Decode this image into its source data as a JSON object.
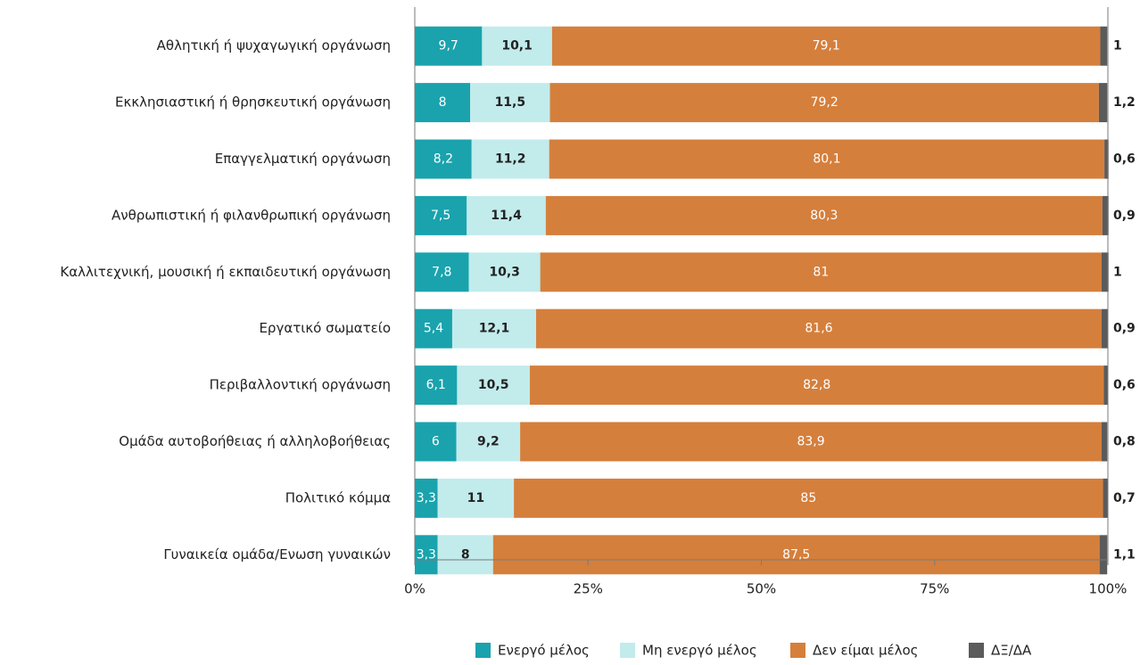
{
  "chart_data": {
    "type": "bar",
    "orientation": "horizontal",
    "stacked": true,
    "categories": [
      "Αθλητική ή ψυχαγωγική οργάνωση",
      "Εκκλησιαστική ή θρησκευτική οργάνωση",
      "Επαγγελματική οργάνωση",
      "Ανθρωπιστική ή φιλανθρωπική οργάνωση",
      "Καλλιτεχνική, μουσική ή εκπαιδευτική οργάνωση",
      "Εργατικό σωματείο",
      "Περιβαλλοντική οργάνωση",
      "Ομάδα αυτοβοήθειας ή αλληλοβοήθειας",
      "Πολιτικό κόμμα",
      "Γυναικεία ομάδα/Ενωση γυναικών"
    ],
    "series": [
      {
        "name": "Ενεργό μέλος",
        "color": "#1aa3ad",
        "label_color": "#ffffff",
        "values": [
          9.7,
          8,
          8.2,
          7.5,
          7.8,
          5.4,
          6.1,
          6,
          3.3,
          3.3
        ],
        "labels": [
          "9,7",
          "8",
          "8,2",
          "7,5",
          "7,8",
          "5,4",
          "6,1",
          "6",
          "3,3",
          "3,3"
        ]
      },
      {
        "name": "Μη ενεργό μέλος",
        "color": "#c2ebec",
        "label_color": "#222222",
        "values": [
          10.1,
          11.5,
          11.2,
          11.4,
          10.3,
          12.1,
          10.5,
          9.2,
          11,
          8
        ],
        "labels": [
          "10,1",
          "11,5",
          "11,2",
          "11,4",
          "10,3",
          "12,1",
          "10,5",
          "9,2",
          "11",
          "8"
        ]
      },
      {
        "name": "Δεν είμαι μέλος",
        "color": "#d57f3c",
        "label_color": "#ffffff",
        "values": [
          79.1,
          79.2,
          80.1,
          80.3,
          81,
          81.6,
          82.8,
          83.9,
          85,
          87.5
        ],
        "labels": [
          "79,1",
          "79,2",
          "80,1",
          "80,3",
          "81",
          "81,6",
          "82,8",
          "83,9",
          "85",
          "87,5"
        ]
      },
      {
        "name": "ΔΞ/ΔΑ",
        "color": "#5b5b5b",
        "label_color": "#222222",
        "label_outside": true,
        "values": [
          1,
          1.2,
          0.6,
          0.9,
          1,
          0.9,
          0.6,
          0.8,
          0.7,
          1.1
        ],
        "labels": [
          "1",
          "1,2",
          "0,6",
          "0,9",
          "1",
          "0,9",
          "0,6",
          "0,8",
          "0,7",
          "1,1"
        ]
      }
    ],
    "xlim": [
      0,
      100
    ],
    "xticks": [
      "0%",
      "25%",
      "50%",
      "75%",
      "100%"
    ],
    "title": "",
    "xlabel": "",
    "ylabel": "",
    "grid": false,
    "legend_position": "bottom"
  }
}
